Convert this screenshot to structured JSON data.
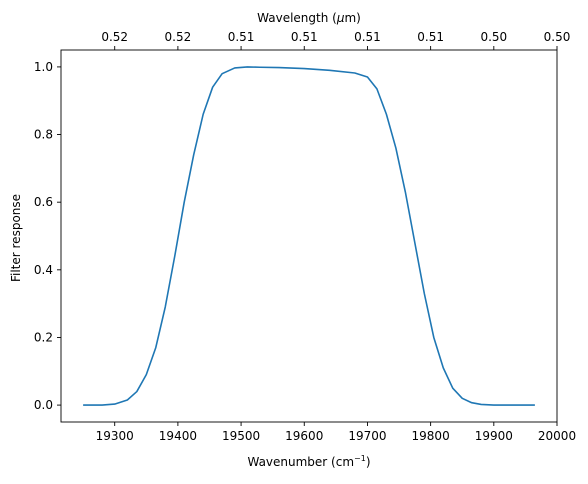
{
  "chart_data": {
    "type": "line",
    "xlabel": "Wavenumber (cm",
    "xlabel_sup": "−1",
    "xlabel_end": ")",
    "ylabel": "Filter response",
    "top_xlabel": "Wavelength (",
    "top_xlabel_mu": "μ",
    "top_xlabel_end": "m)",
    "xlim": [
      19215,
      20000
    ],
    "ylim": [
      -0.05,
      1.05
    ],
    "x_ticks": [
      19300,
      19400,
      19500,
      19600,
      19700,
      19800,
      19900,
      20000
    ],
    "x_tick_labels": [
      "19300",
      "19400",
      "19500",
      "19600",
      "19700",
      "19800",
      "19900",
      "20000"
    ],
    "y_ticks": [
      0.0,
      0.2,
      0.4,
      0.6,
      0.8,
      1.0
    ],
    "y_tick_labels": [
      "0.0",
      "0.2",
      "0.4",
      "0.6",
      "0.8",
      "1.0"
    ],
    "top_x_ticks": [
      19300,
      19400,
      19500,
      19600,
      19700,
      19800,
      19900,
      20000
    ],
    "top_x_tick_labels": [
      "0.52",
      "0.52",
      "0.51",
      "0.51",
      "0.51",
      "0.51",
      "0.50",
      "0.50"
    ],
    "grid": false,
    "series": [
      {
        "color": "#1f77b4",
        "x": [
          19250,
          19280,
          19300,
          19320,
          19335,
          19350,
          19365,
          19380,
          19395,
          19410,
          19425,
          19440,
          19455,
          19470,
          19490,
          19510,
          19530,
          19560,
          19600,
          19640,
          19680,
          19700,
          19715,
          19730,
          19745,
          19760,
          19775,
          19790,
          19805,
          19820,
          19835,
          19850,
          19865,
          19880,
          19900,
          19930,
          19965
        ],
        "y": [
          0.0,
          0.0,
          0.003,
          0.015,
          0.04,
          0.09,
          0.17,
          0.29,
          0.44,
          0.6,
          0.74,
          0.86,
          0.94,
          0.98,
          0.997,
          1.0,
          0.999,
          0.998,
          0.995,
          0.99,
          0.982,
          0.97,
          0.935,
          0.86,
          0.76,
          0.63,
          0.48,
          0.33,
          0.2,
          0.11,
          0.05,
          0.02,
          0.007,
          0.002,
          0.0,
          0.0,
          0.0
        ]
      }
    ]
  }
}
